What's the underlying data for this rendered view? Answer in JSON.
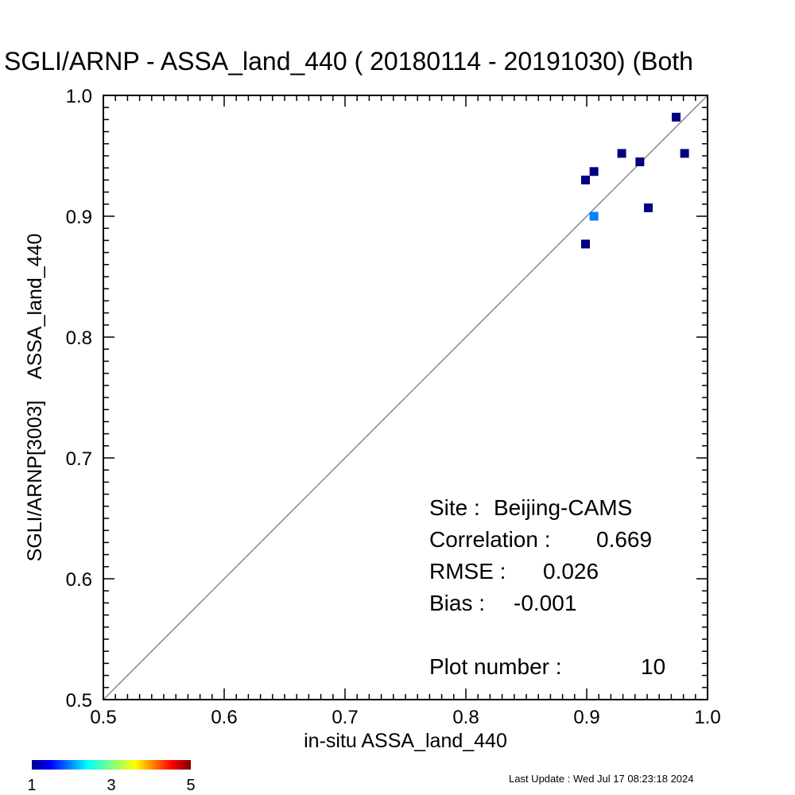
{
  "chart_data": {
    "type": "scatter",
    "title": "SGLI/ARNP - ASSA_land_440 ( 20180114 - 20191030) (Both",
    "xlabel": "in-situ ASSA_land_440",
    "ylabel": "SGLI/ARNP[3003]    ASSA_land_440",
    "xlim": [
      0.5,
      1.0
    ],
    "ylim": [
      0.5,
      1.0
    ],
    "x_ticks": [
      "0.5",
      "0.6",
      "0.7",
      "0.8",
      "0.9",
      "1.0"
    ],
    "y_ticks": [
      "0.5",
      "0.6",
      "0.7",
      "0.8",
      "0.9",
      "1.0"
    ],
    "reference_line": "1:1",
    "points": [
      {
        "x": 0.899,
        "y": 0.877,
        "count": 1
      },
      {
        "x": 0.899,
        "y": 0.93,
        "count": 1
      },
      {
        "x": 0.906,
        "y": 0.9,
        "count": 2
      },
      {
        "x": 0.906,
        "y": 0.937,
        "count": 1
      },
      {
        "x": 0.929,
        "y": 0.952,
        "count": 1
      },
      {
        "x": 0.944,
        "y": 0.945,
        "count": 1
      },
      {
        "x": 0.951,
        "y": 0.907,
        "count": 1
      },
      {
        "x": 0.974,
        "y": 0.982,
        "count": 1
      },
      {
        "x": 0.981,
        "y": 0.952,
        "count": 1
      }
    ],
    "stats": {
      "site_label": "Site :",
      "site_value": "Beijing-CAMS",
      "correlation_label": "Correlation :",
      "correlation_value": "0.669",
      "rmse_label": "RMSE :",
      "rmse_value": "0.026",
      "bias_label": "Bias :",
      "bias_value": "-0.001",
      "plot_number_label": "Plot number :",
      "plot_number_value": "10"
    },
    "colorbar": {
      "min": 1,
      "max": 5,
      "labels": [
        "1",
        "3",
        "5"
      ],
      "colormap": "jet"
    }
  },
  "footer": {
    "last_update": "Last Update : Wed Jul 17 08:23:18 2024"
  }
}
